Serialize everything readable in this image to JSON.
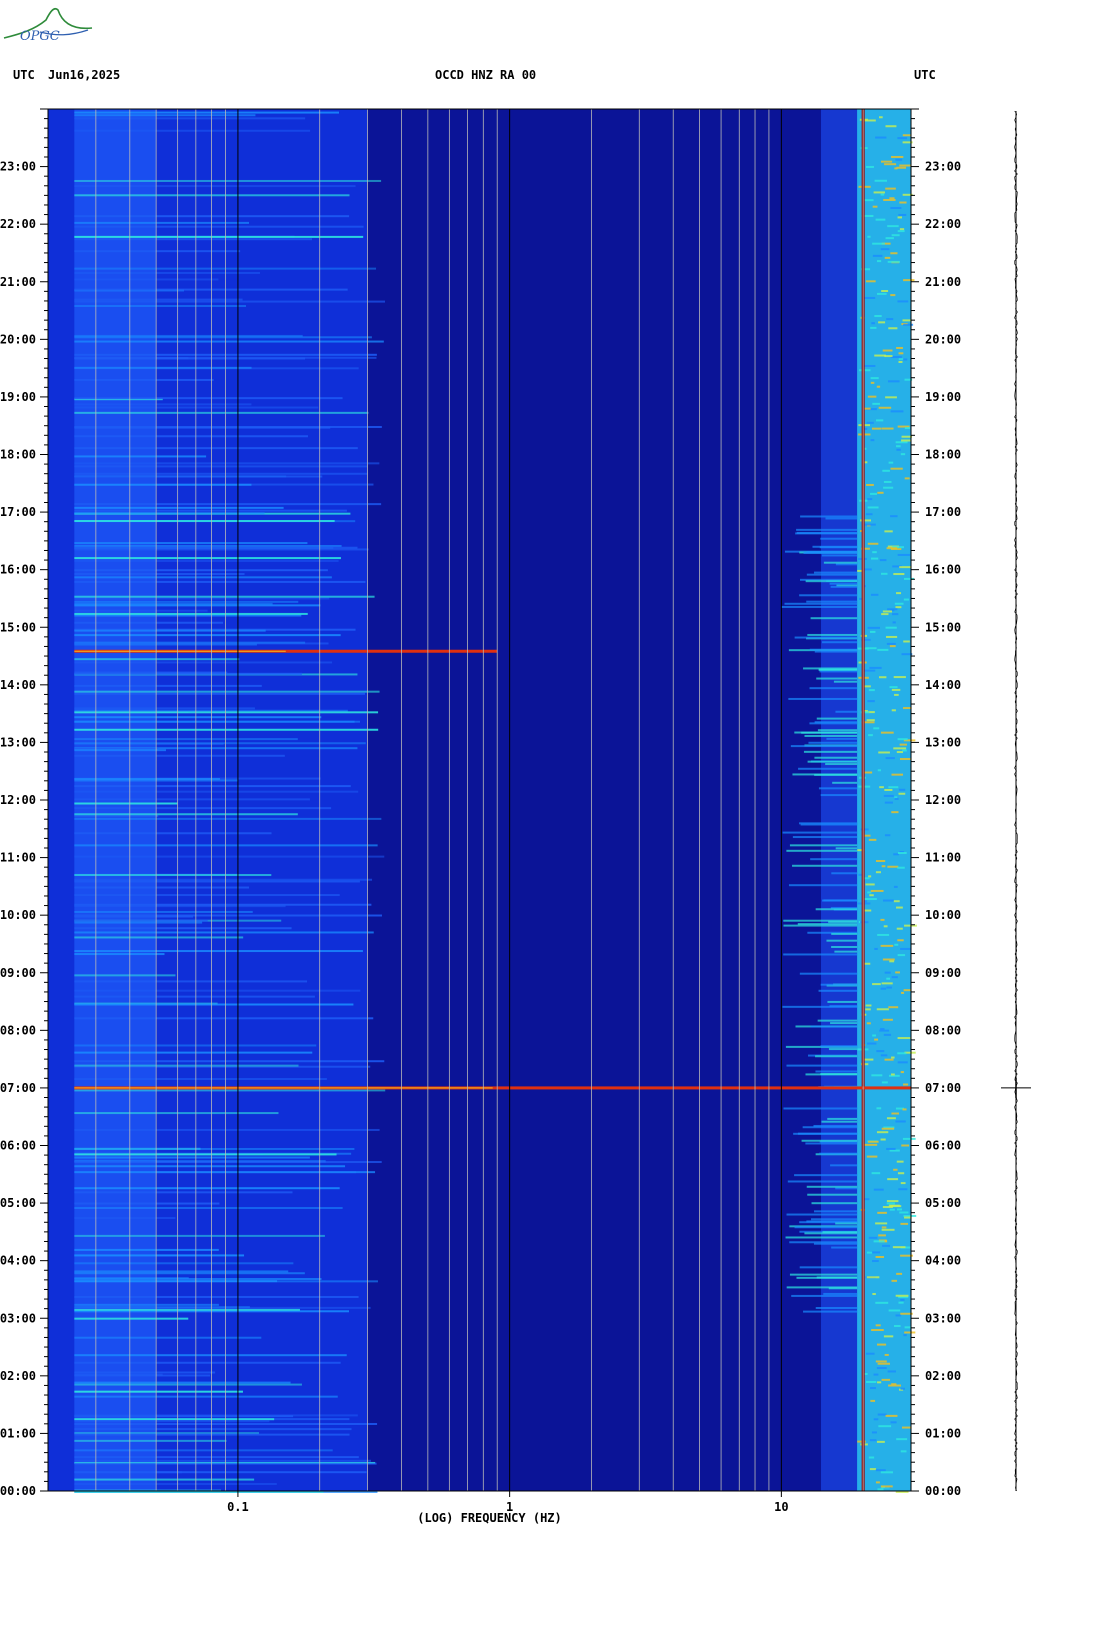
{
  "header": {
    "left_tz": "UTC",
    "date": "Jun16,2025",
    "station": "OCCD HNZ RA 00",
    "right_tz": "UTC"
  },
  "logo": {
    "text": "OPGC"
  },
  "chart_data": {
    "type": "heatmap",
    "title": "OCCD HNZ RA 00",
    "xlabel": "(LOG) FREQUENCY (HZ)",
    "x_scale": "log",
    "xlim": [
      0.02,
      30
    ],
    "x_ticks": [
      0.1,
      1,
      10
    ],
    "x_tick_labels": [
      "0.1",
      "1",
      "10"
    ],
    "y_ticks_hours": [
      0,
      1,
      2,
      3,
      4,
      5,
      6,
      7,
      8,
      9,
      10,
      11,
      12,
      13,
      14,
      15,
      16,
      17,
      18,
      19,
      20,
      21,
      22,
      23
    ],
    "y_tick_labels": [
      "00:00",
      "01:00",
      "02:00",
      "03:00",
      "04:00",
      "05:00",
      "06:00",
      "07:00",
      "08:00",
      "09:00",
      "10:00",
      "11:00",
      "12:00",
      "13:00",
      "14:00",
      "15:00",
      "16:00",
      "17:00",
      "18:00",
      "19:00",
      "20:00",
      "21:00",
      "22:00",
      "23:00"
    ],
    "ylim_hours": [
      0,
      24
    ],
    "grid_frequencies": [
      0.03,
      0.04,
      0.05,
      0.06,
      0.07,
      0.08,
      0.09,
      0.1,
      0.2,
      0.3,
      0.4,
      0.5,
      0.6,
      0.7,
      0.8,
      0.9,
      1,
      2,
      3,
      4,
      5,
      6,
      7,
      8,
      9,
      10,
      20
    ],
    "notable_events": [
      {
        "time_utc": "14:35",
        "freq_range_hz": [
          0.025,
          0.9
        ],
        "note": "strong broadband band"
      },
      {
        "time_utc": "07:00",
        "freq_range_hz": [
          0.025,
          30
        ],
        "note": "strong broadband event"
      }
    ],
    "persistent_line_hz": 20,
    "colormap": [
      "#0a0f8c",
      "#0f2fd8",
      "#1a8cff",
      "#2ee8e0",
      "#c8f050",
      "#f0c020",
      "#e03010",
      "#900808"
    ]
  }
}
